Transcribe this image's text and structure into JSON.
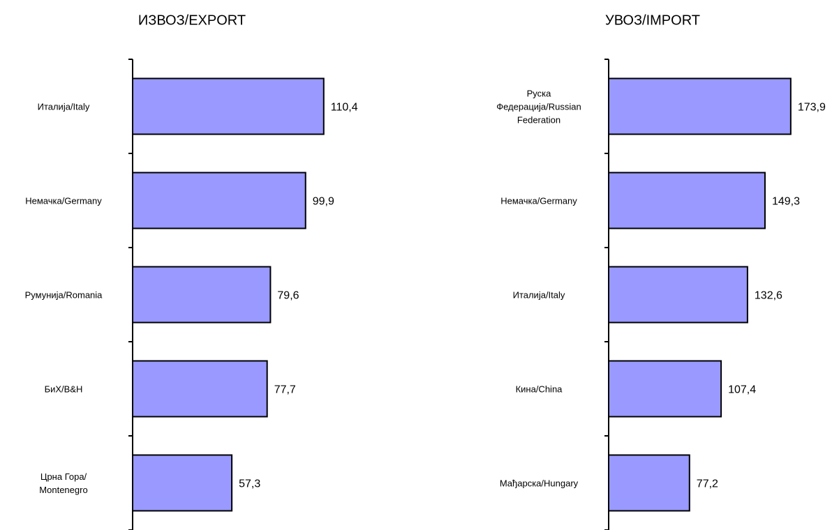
{
  "chart_data": [
    {
      "type": "bar",
      "orientation": "horizontal",
      "title": "ИЗВОЗ/EXPORT",
      "categories": [
        "Италија/Italy",
        "Немачка/Germany",
        "Румунија/Romania",
        "БиХ/B&H",
        "Црна Гора/\nMontenegro"
      ],
      "values": [
        110.4,
        99.9,
        79.6,
        77.7,
        57.3
      ],
      "value_labels": [
        "110,4",
        "99,9",
        "79,6",
        "77,7",
        "57,3"
      ],
      "color": "#9999ff",
      "xlim": [
        0,
        200
      ]
    },
    {
      "type": "bar",
      "orientation": "horizontal",
      "title": "УВОЗ/IMPORT",
      "categories": [
        "Руска\nФедерација/Russian\nFederation",
        "Немачка/Germany",
        "Италија/Italy",
        "Кина/China",
        "Мађарска/Hungary"
      ],
      "values": [
        173.9,
        149.3,
        132.6,
        107.4,
        77.2
      ],
      "value_labels": [
        "173,9",
        "149,3",
        "132,6",
        "107,4",
        "77,2"
      ],
      "color": "#9999ff",
      "xlim": [
        0,
        200
      ]
    }
  ]
}
